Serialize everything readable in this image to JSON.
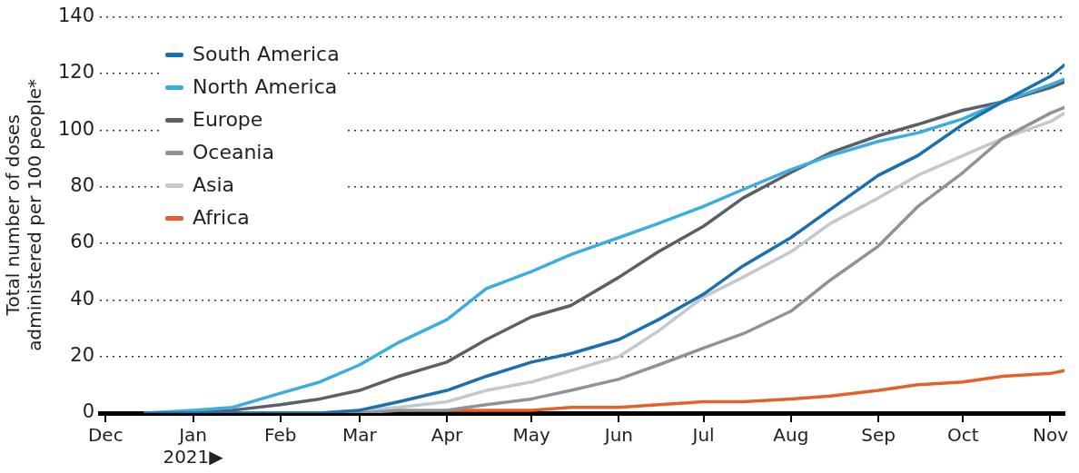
{
  "chart_data": {
    "type": "line",
    "ylabel": "Total number of doses\nadministered per 100 people*",
    "x": [
      "2020-12-15",
      "2021-01-01",
      "2021-01-15",
      "2021-02-01",
      "2021-02-15",
      "2021-03-01",
      "2021-03-15",
      "2021-04-01",
      "2021-04-15",
      "2021-05-01",
      "2021-05-15",
      "2021-06-01",
      "2021-06-15",
      "2021-07-01",
      "2021-07-15",
      "2021-08-01",
      "2021-08-15",
      "2021-09-01",
      "2021-09-15",
      "2021-10-01",
      "2021-10-15",
      "2021-11-01",
      "2021-11-06"
    ],
    "series": [
      {
        "name": "South America",
        "color": "#1a6fb0",
        "values": [
          0,
          0,
          0,
          0,
          0,
          1,
          4,
          8,
          13,
          18,
          21,
          26,
          33,
          42,
          52,
          62,
          72,
          84,
          91,
          102,
          110,
          119,
          123
        ]
      },
      {
        "name": "North America",
        "color": "#3aaee0",
        "values": [
          0,
          1,
          2,
          7,
          11,
          17,
          25,
          33,
          44,
          50,
          56,
          62,
          67,
          73,
          79,
          86,
          91,
          96,
          99,
          104,
          110,
          116,
          118
        ]
      },
      {
        "name": "Europe",
        "color": "#5a6069",
        "values": [
          0,
          0,
          1,
          3,
          5,
          8,
          13,
          18,
          26,
          34,
          38,
          48,
          57,
          66,
          76,
          85,
          92,
          98,
          102,
          107,
          110,
          115,
          117
        ]
      },
      {
        "name": "Oceania",
        "color": "#8e9399",
        "values": [
          0,
          0,
          0,
          0,
          0,
          0,
          1,
          1,
          3,
          5,
          8,
          12,
          17,
          23,
          28,
          36,
          47,
          59,
          73,
          85,
          97,
          106,
          108
        ]
      },
      {
        "name": "Asia",
        "color": "#c4c8ce",
        "values": [
          0,
          0,
          0,
          0,
          0,
          1,
          2,
          4,
          8,
          11,
          15,
          20,
          29,
          41,
          48,
          57,
          67,
          76,
          84,
          91,
          97,
          103,
          106
        ]
      },
      {
        "name": "Africa",
        "color": "#e5602a",
        "values": [
          null,
          null,
          null,
          null,
          null,
          null,
          null,
          1,
          1,
          1,
          2,
          2,
          3,
          4,
          4,
          5,
          6,
          8,
          10,
          11,
          13,
          14,
          15
        ]
      }
    ],
    "xlim": [
      "2020-11-29",
      "2021-11-06"
    ],
    "xticks": [
      {
        "value": "2020-12-01",
        "label": "Dec"
      },
      {
        "value": "2021-01-01",
        "label": "Jan\n2021▶"
      },
      {
        "value": "2021-02-01",
        "label": "Feb"
      },
      {
        "value": "2021-03-01",
        "label": "Mar"
      },
      {
        "value": "2021-04-01",
        "label": "Apr"
      },
      {
        "value": "2021-05-01",
        "label": "May"
      },
      {
        "value": "2021-06-01",
        "label": "Jun"
      },
      {
        "value": "2021-07-01",
        "label": "Jul"
      },
      {
        "value": "2021-08-01",
        "label": "Aug"
      },
      {
        "value": "2021-09-01",
        "label": "Sep"
      },
      {
        "value": "2021-10-01",
        "label": "Oct"
      },
      {
        "value": "2021-11-01",
        "label": "Nov"
      }
    ],
    "ylim": [
      0,
      140
    ],
    "yticks": [
      0,
      20,
      40,
      60,
      80,
      100,
      120,
      140
    ],
    "grid": "y",
    "legend": "top left",
    "marker": "none",
    "line_style": "solid"
  }
}
